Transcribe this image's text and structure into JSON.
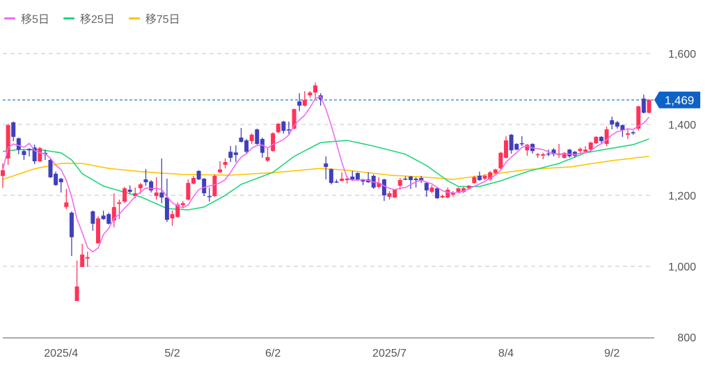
{
  "legend": [
    {
      "label": "移5日",
      "color": "#f06af0"
    },
    {
      "label": "移25日",
      "color": "#1fd67a"
    },
    {
      "label": "移75日",
      "color": "#ffc400"
    }
  ],
  "chart_data": {
    "type": "candlestick",
    "title": "",
    "ylim": [
      800,
      1600
    ],
    "y_ticks": [
      1600,
      1400,
      1200,
      1000,
      800
    ],
    "y_tick_labels": [
      "1,600",
      "1,400",
      "1,200",
      "1,000",
      "800"
    ],
    "x_tick_labels": [
      {
        "label": "2025/4",
        "index": 11
      },
      {
        "label": "5/2",
        "index": 32
      },
      {
        "label": "6/2",
        "index": 51
      },
      {
        "label": "2025/7",
        "index": 73
      },
      {
        "label": "8/4",
        "index": 95
      },
      {
        "label": "9/2",
        "index": 115
      }
    ],
    "grid": true,
    "legend_position": "top-left",
    "current_price": 1469,
    "current_price_label": "1,469",
    "colors": {
      "up": "#ff3358",
      "down": "#4040bb",
      "price_line": "#4a90d9",
      "badge": "#0d62c6"
    },
    "ohlc_format": [
      "open",
      "high",
      "low",
      "close"
    ],
    "ohlc": [
      [
        1255,
        1290,
        1221,
        1271
      ],
      [
        1304,
        1402,
        1286,
        1398
      ],
      [
        1406,
        1408,
        1353,
        1365
      ],
      [
        1361,
        1363,
        1316,
        1329
      ],
      [
        1325,
        1329,
        1300,
        1314
      ],
      [
        1331,
        1333,
        1310,
        1327
      ],
      [
        1335,
        1343,
        1288,
        1296
      ],
      [
        1296,
        1337,
        1294,
        1333
      ],
      [
        1320,
        1329,
        1300,
        1316
      ],
      [
        1300,
        1304,
        1249,
        1251
      ],
      [
        1261,
        1267,
        1227,
        1229
      ],
      [
        1247,
        1249,
        1208,
        1237
      ],
      [
        1167,
        1218,
        1161,
        1180
      ],
      [
        1151,
        1155,
        1029,
        1082
      ],
      [
        902,
        1016,
        902,
        943
      ],
      [
        998,
        1063,
        998,
        1033
      ],
      [
        1022,
        1041,
        998,
        1026
      ],
      [
        1155,
        1157,
        1100,
        1120
      ],
      [
        1065,
        1141,
        1063,
        1135
      ],
      [
        1143,
        1157,
        1131,
        1133
      ],
      [
        1147,
        1151,
        1118,
        1120
      ],
      [
        1129,
        1206,
        1110,
        1167
      ],
      [
        1176,
        1188,
        1133,
        1180
      ],
      [
        1182,
        1224,
        1178,
        1220
      ],
      [
        1216,
        1228,
        1206,
        1210
      ],
      [
        1198,
        1222,
        1192,
        1206
      ],
      [
        1220,
        1235,
        1204,
        1231
      ],
      [
        1245,
        1274,
        1227,
        1237
      ],
      [
        1239,
        1243,
        1208,
        1214
      ],
      [
        1198,
        1251,
        1188,
        1208
      ],
      [
        1208,
        1304,
        1178,
        1194
      ],
      [
        1194,
        1247,
        1125,
        1131
      ],
      [
        1135,
        1157,
        1114,
        1147
      ],
      [
        1139,
        1180,
        1137,
        1174
      ],
      [
        1172,
        1184,
        1165,
        1178
      ],
      [
        1188,
        1245,
        1186,
        1235
      ],
      [
        1233,
        1255,
        1231,
        1249
      ],
      [
        1269,
        1271,
        1243,
        1245
      ],
      [
        1247,
        1249,
        1198,
        1206
      ],
      [
        1198,
        1222,
        1182,
        1196
      ],
      [
        1198,
        1259,
        1196,
        1255
      ],
      [
        1265,
        1296,
        1263,
        1273
      ],
      [
        1286,
        1304,
        1276,
        1294
      ],
      [
        1323,
        1339,
        1294,
        1306
      ],
      [
        1321,
        1341,
        1294,
        1314
      ],
      [
        1363,
        1390,
        1349,
        1351
      ],
      [
        1355,
        1359,
        1318,
        1323
      ],
      [
        1353,
        1375,
        1345,
        1371
      ],
      [
        1386,
        1388,
        1343,
        1345
      ],
      [
        1359,
        1363,
        1306,
        1320
      ],
      [
        1298,
        1333,
        1294,
        1308
      ],
      [
        1325,
        1378,
        1323,
        1375
      ],
      [
        1378,
        1404,
        1375,
        1402
      ],
      [
        1408,
        1410,
        1374,
        1382
      ],
      [
        1386,
        1408,
        1372,
        1384
      ],
      [
        1388,
        1445,
        1386,
        1443
      ],
      [
        1465,
        1488,
        1437,
        1453
      ],
      [
        1453,
        1494,
        1451,
        1469
      ],
      [
        1482,
        1494,
        1475,
        1490
      ],
      [
        1490,
        1518,
        1473,
        1510
      ],
      [
        1482,
        1488,
        1453,
        1471
      ],
      [
        1290,
        1310,
        1245,
        1280
      ],
      [
        1274,
        1276,
        1231,
        1235
      ],
      [
        1239,
        1245,
        1235,
        1237
      ],
      [
        1241,
        1265,
        1239,
        1247
      ],
      [
        1243,
        1255,
        1233,
        1247
      ],
      [
        1253,
        1269,
        1241,
        1245
      ],
      [
        1263,
        1265,
        1241,
        1243
      ],
      [
        1243,
        1247,
        1229,
        1239
      ],
      [
        1245,
        1265,
        1235,
        1237
      ],
      [
        1255,
        1259,
        1218,
        1222
      ],
      [
        1224,
        1251,
        1220,
        1235
      ],
      [
        1245,
        1247,
        1184,
        1200
      ],
      [
        1196,
        1212,
        1188,
        1206
      ],
      [
        1194,
        1218,
        1192,
        1216
      ],
      [
        1227,
        1249,
        1216,
        1243
      ],
      [
        1247,
        1253,
        1243,
        1245
      ],
      [
        1253,
        1255,
        1218,
        1243
      ],
      [
        1247,
        1251,
        1222,
        1243
      ],
      [
        1249,
        1255,
        1235,
        1241
      ],
      [
        1235,
        1237,
        1196,
        1214
      ],
      [
        1210,
        1229,
        1206,
        1222
      ],
      [
        1220,
        1222,
        1190,
        1192
      ],
      [
        1194,
        1202,
        1192,
        1198
      ],
      [
        1194,
        1222,
        1192,
        1216
      ],
      [
        1202,
        1212,
        1196,
        1208
      ],
      [
        1210,
        1222,
        1208,
        1220
      ],
      [
        1210,
        1224,
        1206,
        1220
      ],
      [
        1220,
        1229,
        1216,
        1227
      ],
      [
        1235,
        1255,
        1233,
        1251
      ],
      [
        1255,
        1267,
        1241,
        1243
      ],
      [
        1247,
        1259,
        1243,
        1255
      ],
      [
        1245,
        1269,
        1241,
        1265
      ],
      [
        1263,
        1275,
        1261,
        1273
      ],
      [
        1276,
        1323,
        1274,
        1320
      ],
      [
        1306,
        1367,
        1304,
        1355
      ],
      [
        1371,
        1373,
        1318,
        1327
      ],
      [
        1345,
        1347,
        1327,
        1329
      ],
      [
        1347,
        1367,
        1339,
        1345
      ],
      [
        1327,
        1345,
        1312,
        1343
      ],
      [
        1345,
        1347,
        1318,
        1325
      ],
      [
        1314,
        1320,
        1306,
        1316
      ],
      [
        1312,
        1320,
        1302,
        1316
      ],
      [
        1318,
        1329,
        1310,
        1316
      ],
      [
        1329,
        1333,
        1310,
        1316
      ],
      [
        1314,
        1345,
        1306,
        1318
      ],
      [
        1306,
        1322,
        1304,
        1320
      ],
      [
        1329,
        1331,
        1306,
        1310
      ],
      [
        1323,
        1325,
        1306,
        1312
      ],
      [
        1325,
        1335,
        1320,
        1331
      ],
      [
        1323,
        1339,
        1321,
        1329
      ],
      [
        1329,
        1351,
        1323,
        1349
      ],
      [
        1347,
        1367,
        1345,
        1365
      ],
      [
        1365,
        1367,
        1347,
        1353
      ],
      [
        1345,
        1394,
        1339,
        1386
      ],
      [
        1412,
        1422,
        1386,
        1400
      ],
      [
        1406,
        1410,
        1388,
        1394
      ],
      [
        1398,
        1400,
        1365,
        1384
      ],
      [
        1371,
        1386,
        1359,
        1375
      ],
      [
        1378,
        1382,
        1371,
        1375
      ],
      [
        1388,
        1453,
        1382,
        1451
      ],
      [
        1473,
        1484,
        1431,
        1433
      ],
      [
        1433,
        1471,
        1431,
        1469
      ]
    ],
    "ma25_points": [
      [
        0,
        1324
      ],
      [
        3,
        1329
      ],
      [
        7,
        1329
      ],
      [
        11,
        1320
      ],
      [
        13,
        1300
      ],
      [
        15,
        1261
      ],
      [
        19,
        1226
      ],
      [
        26,
        1196
      ],
      [
        31,
        1163
      ],
      [
        35,
        1159
      ],
      [
        38,
        1167
      ],
      [
        42,
        1200
      ],
      [
        45,
        1231
      ],
      [
        51,
        1265
      ],
      [
        55,
        1310
      ],
      [
        60,
        1349
      ],
      [
        65,
        1355
      ],
      [
        70,
        1339
      ],
      [
        76,
        1316
      ],
      [
        80,
        1284
      ],
      [
        84,
        1241
      ],
      [
        86,
        1225
      ],
      [
        90,
        1225
      ],
      [
        94,
        1241
      ],
      [
        99,
        1267
      ],
      [
        105,
        1290
      ],
      [
        110,
        1320
      ],
      [
        115,
        1333
      ],
      [
        119,
        1343
      ],
      [
        122,
        1359
      ]
    ],
    "ma75_points": [
      [
        0,
        1245
      ],
      [
        6,
        1275
      ],
      [
        11,
        1290
      ],
      [
        15,
        1290
      ],
      [
        20,
        1276
      ],
      [
        26,
        1267
      ],
      [
        34,
        1259
      ],
      [
        43,
        1257
      ],
      [
        52,
        1265
      ],
      [
        60,
        1276
      ],
      [
        65,
        1271
      ],
      [
        73,
        1257
      ],
      [
        80,
        1251
      ],
      [
        85,
        1245
      ],
      [
        91,
        1257
      ],
      [
        99,
        1273
      ],
      [
        107,
        1280
      ],
      [
        115,
        1298
      ],
      [
        122,
        1310
      ]
    ]
  }
}
